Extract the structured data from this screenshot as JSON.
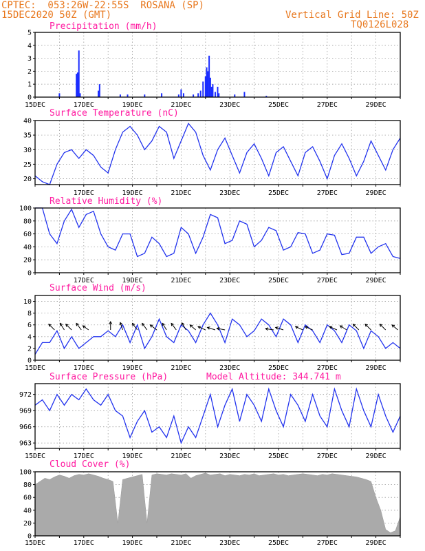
{
  "header": {
    "line1_left": "CPTEC:  053:26W-22:55S  ROSANA (SP)",
    "line2_left": "15DEC2020 50Z (GMT)",
    "line1_right": "Vertical Grid Line: 50Z",
    "line2_right": "TQ0126L028"
  },
  "colors": {
    "line": "#2233ee",
    "bars": "#1a2cff",
    "cloud": "#aaaaaa",
    "title": "#ff1aa0",
    "header": "#e8781e"
  },
  "chart_data": [
    {
      "id": "precip",
      "type": "bar",
      "title": "Precipitation (mm/h)",
      "ylim": [
        0,
        5
      ],
      "yticks": [
        "0",
        "1",
        "2",
        "3",
        "4",
        "5"
      ],
      "x_range_days": [
        15,
        30
      ],
      "x_ticks": [
        "15DEC",
        "17DEC",
        "19DEC",
        "21DEC",
        "23DEC",
        "25DEC",
        "27DEC",
        "29DEC"
      ],
      "points": [
        [
          16.0,
          0.3
        ],
        [
          16.7,
          1.8
        ],
        [
          16.75,
          1.9
        ],
        [
          16.8,
          3.6
        ],
        [
          16.85,
          0.3
        ],
        [
          17.6,
          0.5
        ],
        [
          17.65,
          1.0
        ],
        [
          18.5,
          0.2
        ],
        [
          18.8,
          0.2
        ],
        [
          19.5,
          0.2
        ],
        [
          20.2,
          0.3
        ],
        [
          20.9,
          0.2
        ],
        [
          21.0,
          0.6
        ],
        [
          21.1,
          0.3
        ],
        [
          21.5,
          0.2
        ],
        [
          21.7,
          0.3
        ],
        [
          21.8,
          0.5
        ],
        [
          21.9,
          1.2
        ],
        [
          22.0,
          1.6
        ],
        [
          22.05,
          2.3
        ],
        [
          22.1,
          2.0
        ],
        [
          22.15,
          3.2
        ],
        [
          22.2,
          1.5
        ],
        [
          22.25,
          0.8
        ],
        [
          22.3,
          1.0
        ],
        [
          22.4,
          0.4
        ],
        [
          22.5,
          0.8
        ],
        [
          22.55,
          0.3
        ],
        [
          23.2,
          0.2
        ],
        [
          23.6,
          0.4
        ],
        [
          24.5,
          0.1
        ]
      ]
    },
    {
      "id": "temp",
      "type": "line",
      "title": "Surface Temperature (nC)",
      "ylim": [
        18,
        40
      ],
      "yticks": [
        "20",
        "25",
        "30",
        "35",
        "40"
      ],
      "x_ticks": [
        "17DEC",
        "19DEC",
        "21DEC",
        "23DEC",
        "25DEC",
        "27DEC",
        "29DEC"
      ],
      "x": [
        15.0,
        15.3,
        15.6,
        15.9,
        16.2,
        16.5,
        16.8,
        17.1,
        17.4,
        17.7,
        18.0,
        18.3,
        18.6,
        18.9,
        19.2,
        19.5,
        19.8,
        20.1,
        20.4,
        20.7,
        21.0,
        21.3,
        21.6,
        21.9,
        22.2,
        22.5,
        22.8,
        23.1,
        23.4,
        23.7,
        24.0,
        24.3,
        24.6,
        24.9,
        25.2,
        25.5,
        25.8,
        26.1,
        26.4,
        26.7,
        27.0,
        27.3,
        27.6,
        27.9,
        28.2,
        28.5,
        28.8,
        29.1,
        29.4,
        29.7,
        30.0
      ],
      "y": [
        21,
        19,
        18,
        25,
        29,
        30,
        27,
        30,
        28,
        24,
        22,
        30,
        36,
        38,
        35,
        30,
        33,
        38,
        36,
        27,
        33,
        39,
        36,
        28,
        23,
        30,
        34,
        28,
        22,
        29,
        32,
        27,
        21,
        29,
        31,
        26,
        21,
        29,
        31,
        26,
        20,
        28,
        32,
        27,
        21,
        26,
        33,
        28,
        23,
        30,
        34
      ]
    },
    {
      "id": "rh",
      "type": "line",
      "title": "Relative Humidity (%)",
      "ylim": [
        0,
        100
      ],
      "yticks": [
        "0",
        "20",
        "40",
        "60",
        "80",
        "100"
      ],
      "x_ticks": [
        "17DEC",
        "19DEC",
        "21DEC",
        "23DEC",
        "25DEC",
        "27DEC",
        "29DEC"
      ],
      "x": [
        15.0,
        15.3,
        15.6,
        15.9,
        16.2,
        16.5,
        16.8,
        17.1,
        17.4,
        17.7,
        18.0,
        18.3,
        18.6,
        18.9,
        19.2,
        19.5,
        19.8,
        20.1,
        20.4,
        20.7,
        21.0,
        21.3,
        21.6,
        21.9,
        22.2,
        22.5,
        22.8,
        23.1,
        23.4,
        23.7,
        24.0,
        24.3,
        24.6,
        24.9,
        25.2,
        25.5,
        25.8,
        26.1,
        26.4,
        26.7,
        27.0,
        27.3,
        27.6,
        27.9,
        28.2,
        28.5,
        28.8,
        29.1,
        29.4,
        29.7,
        30.0
      ],
      "y": [
        100,
        100,
        60,
        45,
        80,
        98,
        70,
        90,
        95,
        60,
        40,
        35,
        60,
        60,
        25,
        30,
        55,
        45,
        25,
        30,
        70,
        60,
        30,
        55,
        90,
        85,
        45,
        50,
        80,
        75,
        40,
        50,
        70,
        65,
        35,
        40,
        62,
        60,
        30,
        35,
        60,
        58,
        28,
        30,
        55,
        55,
        30,
        40,
        45,
        25,
        22
      ]
    },
    {
      "id": "wind",
      "type": "line",
      "title": "Surface Wind (m/s)",
      "ylim": [
        0,
        11
      ],
      "yticks": [
        "0",
        "2",
        "4",
        "6",
        "8",
        "10"
      ],
      "x_ticks": [
        "15DEC",
        "17DEC",
        "19DEC",
        "21DEC",
        "23DEC",
        "25DEC",
        "27DEC",
        "29DEC"
      ],
      "x": [
        15.0,
        15.3,
        15.6,
        15.9,
        16.2,
        16.5,
        16.8,
        17.1,
        17.4,
        17.7,
        18.0,
        18.3,
        18.6,
        18.9,
        19.2,
        19.5,
        19.8,
        20.1,
        20.4,
        20.7,
        21.0,
        21.3,
        21.6,
        21.9,
        22.2,
        22.5,
        22.8,
        23.1,
        23.4,
        23.7,
        24.0,
        24.3,
        24.6,
        24.9,
        25.2,
        25.5,
        25.8,
        26.1,
        26.4,
        26.7,
        27.0,
        27.3,
        27.6,
        27.9,
        28.2,
        28.5,
        28.8,
        29.1,
        29.4,
        29.7,
        30.0
      ],
      "y": [
        1,
        3,
        3,
        5,
        2,
        4,
        2,
        3,
        4,
        4,
        5,
        4,
        6,
        3,
        6,
        2,
        4,
        7,
        4,
        3,
        6,
        5,
        3,
        6,
        8,
        6,
        3,
        7,
        6,
        4,
        5,
        7,
        6,
        4,
        7,
        6,
        3,
        6,
        5,
        3,
        6,
        5,
        3,
        6,
        5,
        2,
        5,
        4,
        2,
        3,
        2
      ],
      "arrows": [
        [
          15.8,
          -0.7,
          0.7
        ],
        [
          16.2,
          -0.5,
          0.8
        ],
        [
          16.5,
          -0.7,
          0.7
        ],
        [
          16.9,
          -0.6,
          0.8
        ],
        [
          17.2,
          -0.7,
          0.5
        ],
        [
          18.1,
          0,
          1
        ],
        [
          18.6,
          -0.3,
          0.9
        ],
        [
          19.2,
          -0.6,
          0.8
        ],
        [
          19.6,
          -0.6,
          0.8
        ],
        [
          20.0,
          -0.8,
          0.6
        ],
        [
          20.4,
          -0.5,
          0.8
        ],
        [
          20.8,
          -0.6,
          0.8
        ],
        [
          21.2,
          -0.5,
          0.85
        ],
        [
          21.6,
          -0.7,
          0.6
        ],
        [
          22.0,
          -0.9,
          0.4
        ],
        [
          22.4,
          -0.95,
          0.3
        ],
        [
          22.8,
          -0.98,
          0.2
        ],
        [
          24.8,
          -0.98,
          0.15
        ],
        [
          25.2,
          -0.95,
          0.3
        ],
        [
          26.0,
          -0.9,
          0.4
        ],
        [
          26.4,
          -0.9,
          0.4
        ],
        [
          27.4,
          -0.9,
          0.4
        ],
        [
          27.8,
          -0.8,
          0.5
        ],
        [
          28.3,
          -0.7,
          0.7
        ],
        [
          28.8,
          -0.7,
          0.7
        ],
        [
          29.4,
          -0.7,
          0.7
        ],
        [
          29.9,
          -0.7,
          0.6
        ]
      ]
    },
    {
      "id": "pressure",
      "type": "line",
      "title": "Surface Pressure (hPa)",
      "subtitle": "Model Altitude: 344.741 m",
      "ylim": [
        962,
        974
      ],
      "yticks": [
        "963",
        "966",
        "969",
        "972"
      ],
      "x_ticks": [
        "15DEC",
        "17DEC",
        "19DEC",
        "21DEC",
        "23DEC",
        "25DEC",
        "27DEC",
        "29DEC"
      ],
      "x": [
        15.0,
        15.3,
        15.6,
        15.9,
        16.2,
        16.5,
        16.8,
        17.1,
        17.4,
        17.7,
        18.0,
        18.3,
        18.6,
        18.9,
        19.2,
        19.5,
        19.8,
        20.1,
        20.4,
        20.7,
        21.0,
        21.3,
        21.6,
        21.9,
        22.2,
        22.5,
        22.8,
        23.1,
        23.4,
        23.7,
        24.0,
        24.3,
        24.6,
        24.9,
        25.2,
        25.5,
        25.8,
        26.1,
        26.4,
        26.7,
        27.0,
        27.3,
        27.6,
        27.9,
        28.2,
        28.5,
        28.8,
        29.1,
        29.4,
        29.7,
        30.0
      ],
      "y": [
        970,
        971,
        969,
        972,
        970,
        972,
        971,
        973,
        971,
        970,
        972,
        969,
        968,
        964,
        967,
        969,
        965,
        966,
        964,
        968,
        963,
        966,
        964,
        968,
        972,
        966,
        970,
        973,
        967,
        972,
        970,
        967,
        973,
        969,
        966,
        972,
        970,
        967,
        972,
        968,
        966,
        973,
        969,
        966,
        973,
        969,
        966,
        972,
        968,
        965,
        968
      ]
    },
    {
      "id": "cloud",
      "type": "area",
      "title": "Cloud Cover (%)",
      "ylim": [
        0,
        100
      ],
      "yticks": [
        "0",
        "20",
        "40",
        "60",
        "80",
        "100"
      ],
      "x_ticks": [
        "15DEC",
        "17DEC",
        "19DEC",
        "21DEC",
        "23DEC",
        "25DEC",
        "27DEC",
        "29DEC"
      ],
      "x": [
        15.0,
        15.2,
        15.4,
        15.6,
        15.8,
        16.0,
        16.2,
        16.4,
        16.6,
        16.8,
        17.0,
        17.2,
        17.4,
        17.6,
        17.8,
        18.0,
        18.2,
        18.4,
        18.6,
        18.8,
        19.0,
        19.2,
        19.4,
        19.6,
        19.8,
        20.0,
        20.2,
        20.4,
        20.6,
        20.8,
        21.0,
        21.2,
        21.4,
        21.6,
        21.8,
        22.0,
        22.2,
        22.4,
        22.6,
        22.8,
        23.0,
        23.2,
        23.4,
        23.6,
        23.8,
        24.0,
        24.2,
        24.4,
        24.6,
        24.8,
        25.0,
        25.2,
        25.4,
        25.6,
        25.8,
        26.0,
        26.2,
        26.4,
        26.6,
        26.8,
        27.0,
        27.2,
        27.4,
        27.6,
        27.8,
        28.0,
        28.2,
        28.4,
        28.6,
        28.8,
        29.0,
        29.2,
        29.4,
        29.6,
        29.8,
        30.0
      ],
      "y": [
        80,
        85,
        90,
        88,
        92,
        95,
        93,
        90,
        94,
        96,
        95,
        97,
        95,
        93,
        90,
        88,
        85,
        20,
        88,
        90,
        92,
        94,
        96,
        20,
        95,
        97,
        96,
        95,
        97,
        96,
        95,
        97,
        90,
        94,
        96,
        98,
        95,
        96,
        97,
        94,
        96,
        95,
        94,
        96,
        95,
        97,
        94,
        95,
        96,
        97,
        95,
        96,
        94,
        95,
        96,
        97,
        96,
        95,
        94,
        96,
        95,
        97,
        96,
        95,
        94,
        93,
        92,
        90,
        88,
        85,
        60,
        40,
        10,
        5,
        8,
        30
      ]
    }
  ]
}
